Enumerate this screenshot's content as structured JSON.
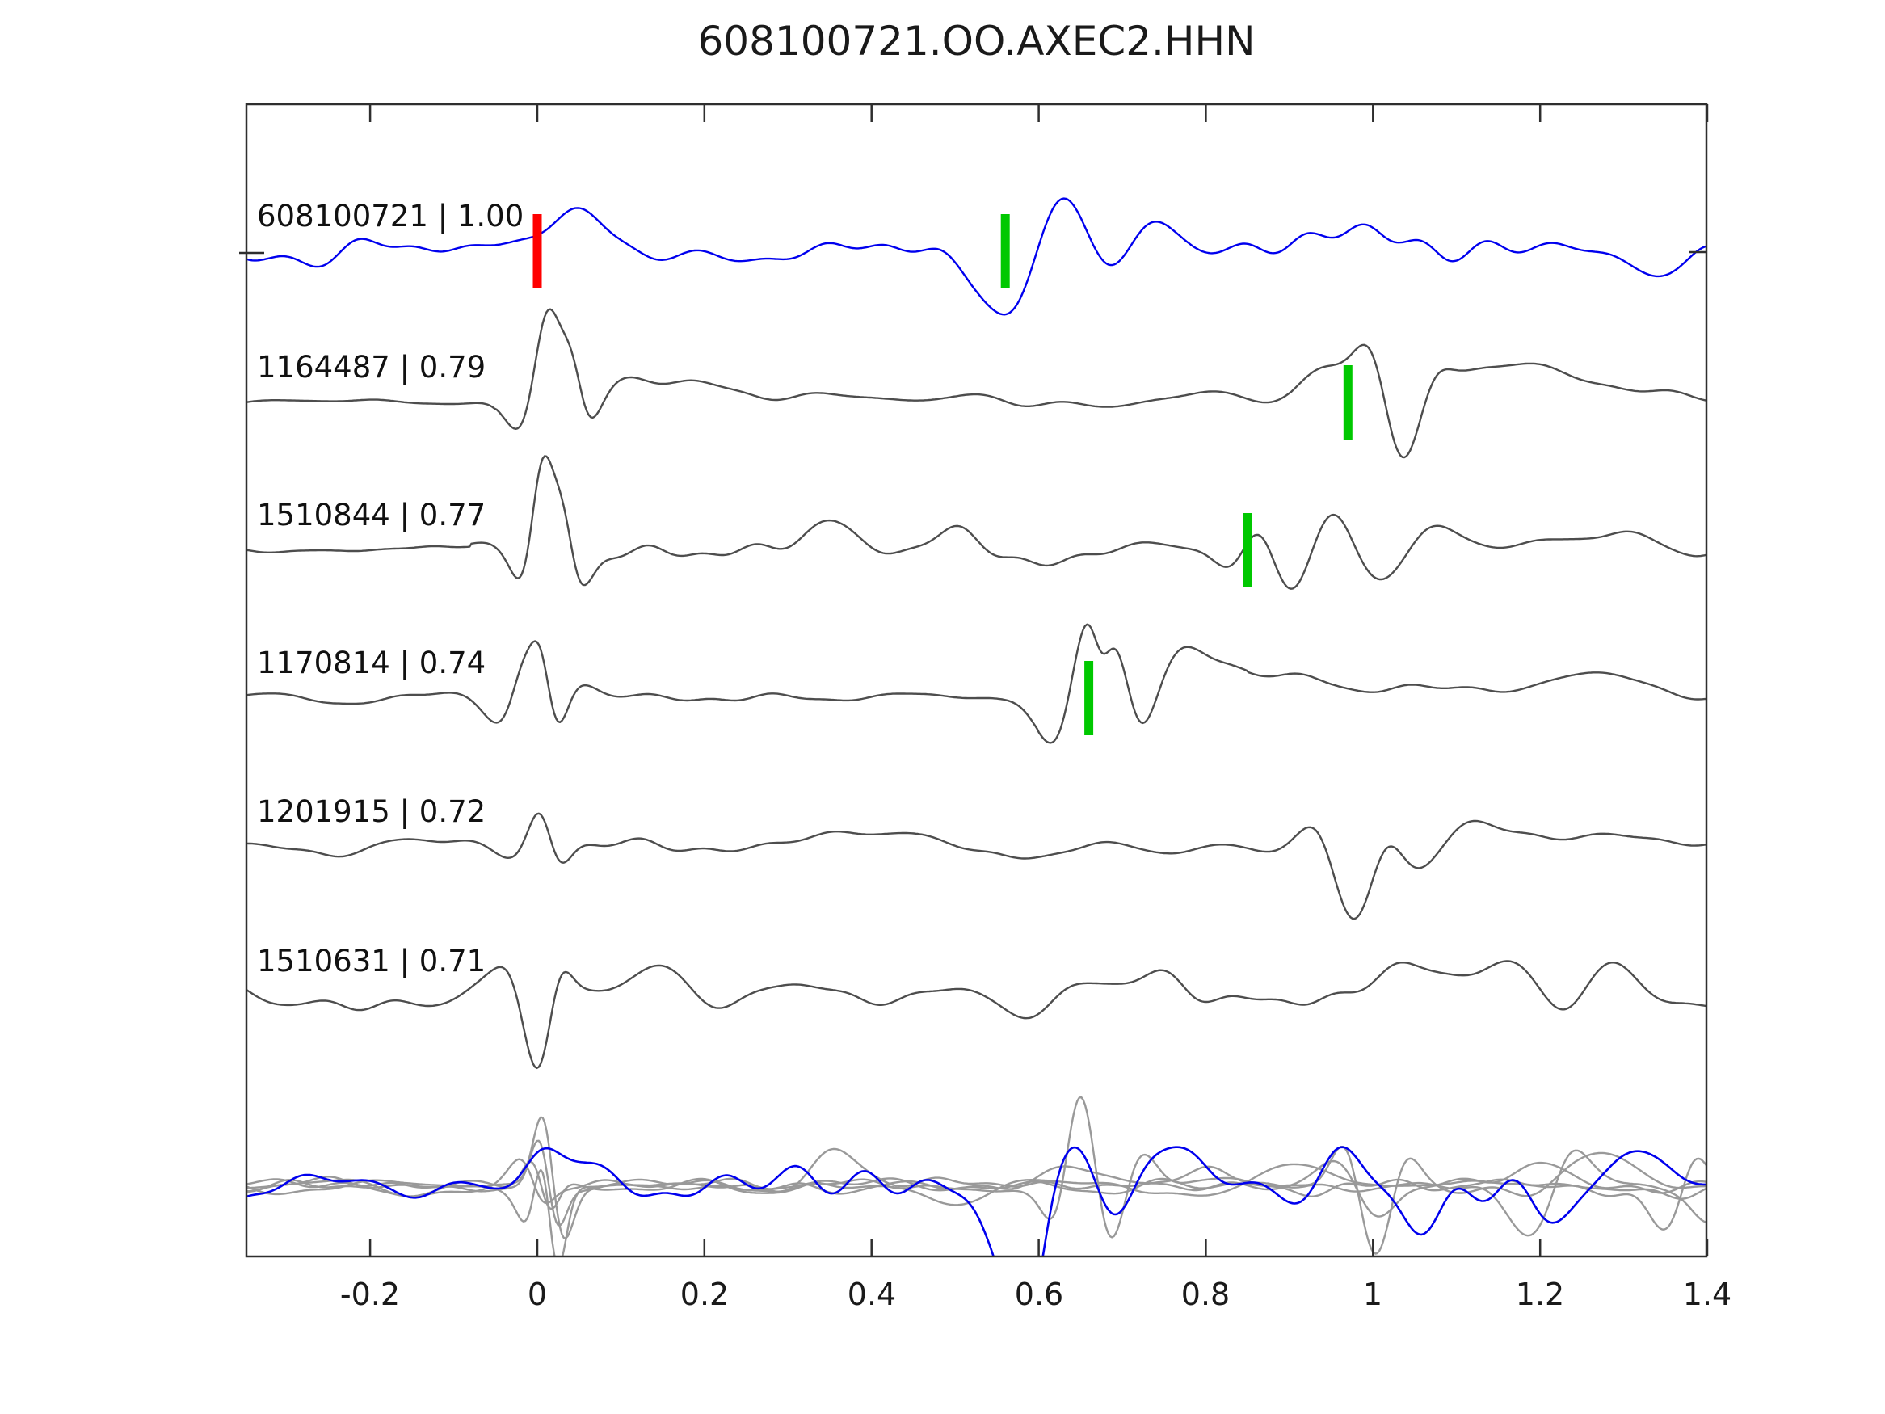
{
  "title": "608100721.OO.AXEC2.HHN",
  "colors": {
    "template_trace": "#0000EE",
    "match_trace": "#4D4D4D",
    "overlay_gray": "#999999",
    "pick_marker": "#FF0000",
    "detection_marker": "#00C800",
    "axis": "#2E2E2E",
    "text": "#111111"
  },
  "axis": {
    "xlim": [
      -0.348,
      1.399
    ],
    "xticks": [
      {
        "value": -0.2,
        "label": "-0.2"
      },
      {
        "value": 0,
        "label": "0"
      },
      {
        "value": 0.2,
        "label": "0.2"
      },
      {
        "value": 0.4,
        "label": "0.4"
      },
      {
        "value": 0.6,
        "label": "0.6"
      },
      {
        "value": 0.8,
        "label": "0.8"
      },
      {
        "value": 1,
        "label": "1"
      },
      {
        "value": 1.2,
        "label": "1.2"
      },
      {
        "value": 1.4,
        "label": "1.4"
      }
    ]
  },
  "chart_data": {
    "type": "line",
    "title": "608100721.OO.AXEC2.HHN",
    "xlabel": "",
    "ylabel": "",
    "legend": "none",
    "x_axis": {
      "tick_labels": [
        "-0.2",
        "0",
        "0.2",
        "0.4",
        "0.6",
        "0.8",
        "1",
        "1.2",
        "1.4"
      ],
      "range": [
        -0.35,
        1.4
      ]
    },
    "traces": [
      {
        "label": "608100721 | 1.00",
        "event_id": "608100721",
        "correlation": 1.0,
        "role": "template",
        "color_key": "template_trace",
        "y0": 310,
        "stroke": 2.4,
        "markers": [
          {
            "type": "pick",
            "color_key": "pick_marker",
            "t": 0.0
          },
          {
            "type": "detection",
            "color_key": "detection_marker",
            "t": 0.56
          }
        ],
        "synth": {
          "seed": 11,
          "noise": 24,
          "nseg": [],
          "events": [
            [
              0.055,
              45,
              0.03
            ],
            [
              0.57,
              -105,
              0.028
            ],
            [
              0.625,
              70,
              0.03
            ],
            [
              0.68,
              -45,
              0.03
            ],
            [
              0.74,
              40,
              0.04
            ],
            [
              0.95,
              30,
              0.05
            ],
            [
              1.32,
              -30,
              0.04
            ]
          ]
        }
      },
      {
        "label": "1164487 | 0.79",
        "event_id": "1164487",
        "correlation": 0.79,
        "role": "match",
        "color_key": "match_trace",
        "y0": 497,
        "stroke": 2.4,
        "markers": [
          {
            "type": "detection",
            "color_key": "detection_marker",
            "t": 0.97
          }
        ],
        "synth": {
          "seed": 22,
          "noise": 10,
          "nseg": [
            [
              -0.348,
              -0.05,
              0.3
            ],
            [
              0.9,
              1.41,
              1.6
            ]
          ],
          "events": [
            [
              -0.02,
              -40,
              0.018
            ],
            [
              0.012,
              120,
              0.015
            ],
            [
              0.042,
              60,
              0.012
            ],
            [
              0.06,
              -40,
              0.015
            ],
            [
              0.11,
              25,
              0.03
            ],
            [
              0.2,
              16,
              0.04
            ],
            [
              0.33,
              14,
              0.03
            ],
            [
              0.5,
              10,
              0.04
            ],
            [
              0.95,
              45,
              0.03
            ],
            [
              1.0,
              85,
              0.02
            ],
            [
              1.035,
              -95,
              0.024
            ],
            [
              1.07,
              40,
              0.02
            ],
            [
              1.13,
              35,
              0.04
            ],
            [
              1.22,
              28,
              0.04
            ],
            [
              1.3,
              22,
              0.04
            ]
          ]
        }
      },
      {
        "label": "1510844 | 0.77",
        "event_id": "1510844",
        "correlation": 0.77,
        "role": "match",
        "color_key": "match_trace",
        "y0": 680,
        "stroke": 2.4,
        "markers": [
          {
            "type": "detection",
            "color_key": "detection_marker",
            "t": 0.85
          }
        ],
        "synth": {
          "seed": 33,
          "noise": 13,
          "nseg": [
            [
              -0.348,
              -0.08,
              0.5
            ]
          ],
          "events": [
            [
              -0.015,
              -45,
              0.014
            ],
            [
              0.006,
              125,
              0.013
            ],
            [
              0.032,
              62,
              0.011
            ],
            [
              0.05,
              -58,
              0.016
            ],
            [
              0.35,
              22,
              0.03
            ],
            [
              0.5,
              28,
              0.025
            ],
            [
              0.62,
              -20,
              0.03
            ],
            [
              0.83,
              -30,
              0.02
            ],
            [
              0.865,
              48,
              0.02
            ],
            [
              0.9,
              -55,
              0.025
            ],
            [
              0.955,
              50,
              0.025
            ],
            [
              1.01,
              -40,
              0.03
            ],
            [
              1.07,
              35,
              0.03
            ],
            [
              1.3,
              30,
              0.03
            ]
          ]
        }
      },
      {
        "label": "1170814 | 0.74",
        "event_id": "1170814",
        "correlation": 0.74,
        "role": "match",
        "color_key": "match_trace",
        "y0": 863,
        "stroke": 2.4,
        "markers": [
          {
            "type": "detection",
            "color_key": "detection_marker",
            "t": 0.66
          }
        ],
        "synth": {
          "seed": 44,
          "noise": 7.5,
          "nseg": [
            [
              0.6,
              0.85,
              1.8
            ]
          ],
          "events": [
            [
              -0.045,
              -30,
              0.018
            ],
            [
              -0.018,
              38,
              0.012
            ],
            [
              0.004,
              72,
              0.012
            ],
            [
              0.022,
              -55,
              0.013
            ],
            [
              0.05,
              15,
              0.02
            ],
            [
              0.62,
              -62,
              0.022
            ],
            [
              0.658,
              112,
              0.018
            ],
            [
              0.675,
              -40,
              0.01
            ],
            [
              0.695,
              78,
              0.016
            ],
            [
              0.72,
              -58,
              0.02
            ],
            [
              0.77,
              42,
              0.028
            ],
            [
              0.82,
              30,
              0.04
            ],
            [
              0.93,
              22,
              0.05
            ],
            [
              1.1,
              15,
              0.05
            ],
            [
              1.26,
              32,
              0.045
            ]
          ]
        }
      },
      {
        "label": "1201915 | 0.72",
        "event_id": "1201915",
        "correlation": 0.72,
        "role": "match",
        "color_key": "match_trace",
        "y0": 1047,
        "stroke": 2.4,
        "markers": [],
        "synth": {
          "seed": 55,
          "noise": 9,
          "nseg": [],
          "events": [
            [
              -0.03,
              -15,
              0.02
            ],
            [
              0.004,
              58,
              0.014
            ],
            [
              0.024,
              -32,
              0.014
            ],
            [
              0.3,
              12,
              0.04
            ],
            [
              0.45,
              14,
              0.04
            ],
            [
              0.62,
              -14,
              0.05
            ],
            [
              0.94,
              48,
              0.022
            ],
            [
              0.978,
              -112,
              0.028
            ],
            [
              1.015,
              62,
              0.02
            ],
            [
              1.06,
              -38,
              0.03
            ],
            [
              1.12,
              26,
              0.04
            ],
            [
              1.3,
              20,
              0.05
            ]
          ]
        }
      },
      {
        "label": "1510631 | 0.71",
        "event_id": "1510631",
        "correlation": 0.71,
        "role": "match",
        "color_key": "match_trace",
        "y0": 1232,
        "stroke": 2.4,
        "markers": [],
        "synth": {
          "seed": 66,
          "noise": 17,
          "nseg": [],
          "events": [
            [
              -0.025,
              55,
              0.02
            ],
            [
              0.002,
              -122,
              0.02
            ],
            [
              0.024,
              72,
              0.014
            ],
            [
              0.3,
              26,
              0.05
            ],
            [
              0.55,
              -22,
              0.04
            ],
            [
              0.75,
              20,
              0.05
            ],
            [
              1.05,
              30,
              0.04
            ],
            [
              1.17,
              45,
              0.04
            ],
            [
              1.23,
              -55,
              0.028
            ],
            [
              1.29,
              42,
              0.03
            ]
          ]
        }
      },
      {
        "label": "",
        "role": "overlay",
        "y0": 1468,
        "markers": [],
        "members": [
          {
            "color_key": "overlay_gray",
            "stroke": 2.4,
            "synth": {
              "seed": 71,
              "noise": 10,
              "nseg": [],
              "events": [
                [
                  0.006,
                  88,
                  0.012
                ],
                [
                  0.02,
                  -78,
                  0.012
                ],
                [
                  0.64,
                  25,
                  0.03
                ],
                [
                  0.96,
                  35,
                  0.03
                ],
                [
                  1.0,
                  -45,
                  0.024
                ],
                [
                  1.2,
                  30,
                  0.03
                ]
              ]
            }
          },
          {
            "color_key": "overlay_gray",
            "stroke": 2.4,
            "synth": {
              "seed": 72,
              "noise": 11,
              "nseg": [],
              "events": [
                [
                  -0.005,
                  -60,
                  0.015
                ],
                [
                  0.008,
                  148,
                  0.011
                ],
                [
                  0.02,
                  -145,
                  0.012
                ],
                [
                  0.623,
                  -55,
                  0.015
                ],
                [
                  0.65,
                  132,
                  0.018
                ],
                [
                  0.685,
                  -88,
                  0.018
                ],
                [
                  0.72,
                  40,
                  0.02
                ]
              ]
            }
          },
          {
            "color_key": "overlay_gray",
            "stroke": 2.4,
            "synth": {
              "seed": 73,
              "noise": 9,
              "nseg": [],
              "events": [
                [
                  0.0,
                  55,
                  0.014
                ],
                [
                  0.012,
                  -68,
                  0.012
                ],
                [
                  0.97,
                  82,
                  0.018
                ],
                [
                  1.002,
                  -118,
                  0.022
                ],
                [
                  1.035,
                  58,
                  0.018
                ],
                [
                  1.28,
                  35,
                  0.03
                ]
              ]
            }
          },
          {
            "color_key": "overlay_gray",
            "stroke": 2.4,
            "synth": {
              "seed": 74,
              "noise": 10,
              "nseg": [],
              "events": [
                [
                  0.009,
                  112,
                  0.012
                ],
                [
                  0.027,
                  -92,
                  0.014
                ],
                [
                  0.35,
                  42,
                  0.03
                ],
                [
                  0.8,
                  28,
                  0.03
                ],
                [
                  1.19,
                  -68,
                  0.026
                ],
                [
                  1.235,
                  52,
                  0.02
                ],
                [
                  1.4,
                  -45,
                  0.02
                ]
              ]
            }
          },
          {
            "color_key": "overlay_gray",
            "stroke": 2.4,
            "synth": {
              "seed": 75,
              "noise": 9,
              "nseg": [],
              "events": [
                [
                  -0.012,
                  42,
                  0.018
                ],
                [
                  0.004,
                  -52,
                  0.014
                ],
                [
                  0.5,
                  -20,
                  0.03
                ],
                [
                  0.9,
                  25,
                  0.03
                ],
                [
                  1.35,
                  -55,
                  0.02
                ],
                [
                  1.385,
                  48,
                  0.016
                ]
              ]
            }
          },
          {
            "color_key": "template_trace",
            "stroke": 2.6,
            "synth": {
              "seed": 70,
              "noise": 21,
              "nseg": [],
              "events": [
                [
                  0.002,
                  32,
                  0.02
                ],
                [
                  0.05,
                  25,
                  0.03
                ],
                [
                  0.56,
                  -68,
                  0.028
                ],
                [
                  0.588,
                  -115,
                  0.018
                ],
                [
                  0.64,
                  58,
                  0.028
                ],
                [
                  0.69,
                  -52,
                  0.024
                ],
                [
                  0.75,
                  42,
                  0.03
                ],
                [
                  0.9,
                  -35,
                  0.03
                ],
                [
                  0.975,
                  42,
                  0.035
                ],
                [
                  1.05,
                  -30,
                  0.03
                ],
                [
                  1.22,
                  -40,
                  0.03
                ],
                [
                  1.3,
                  38,
                  0.028
                ]
              ]
            }
          }
        ]
      }
    ]
  }
}
